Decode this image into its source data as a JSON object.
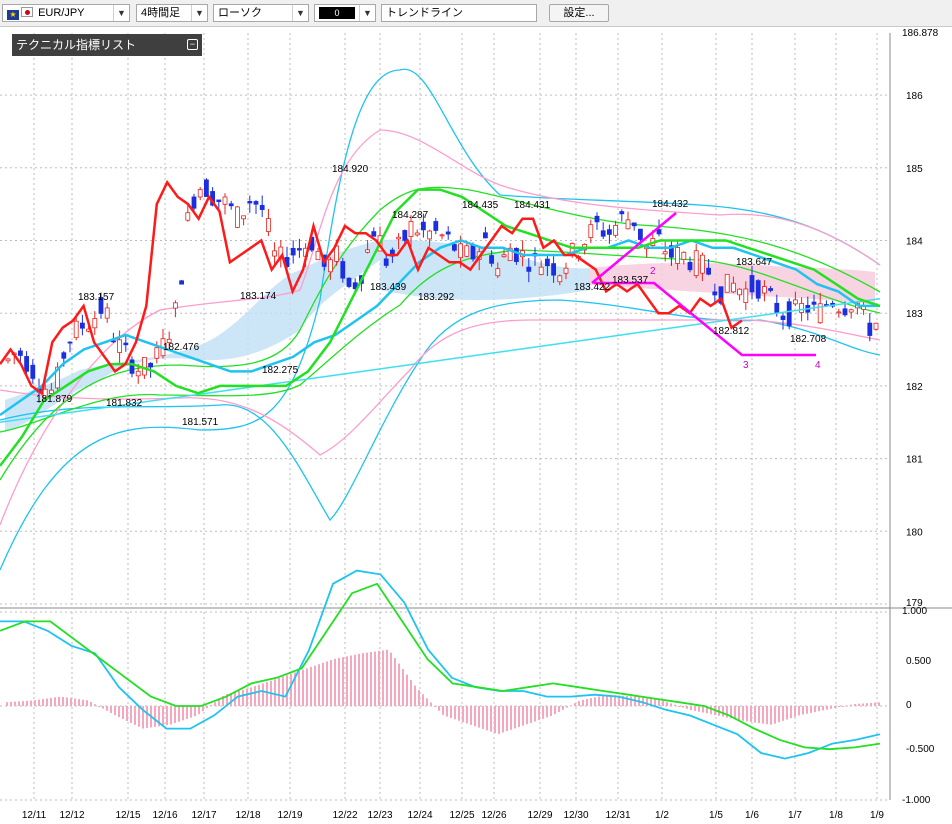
{
  "toolbar": {
    "symbol": "EUR/JPY",
    "period": "4時間足",
    "chart_type": "ローソク",
    "color_label": "0",
    "trend_tool": "トレンドライン",
    "settings": "設定..."
  },
  "indicator_list": {
    "title": "テクニカル指標リスト"
  },
  "colors": {
    "bull": "#e8221d",
    "bear": "#1a2fe0",
    "mid": "#ff1a1a",
    "line_green": "#22e022",
    "line_cyan": "#1ec3f0",
    "band_pink": "#ff9ccc"
  },
  "chart_data": [
    {
      "type": "candlestick",
      "ylim": [
        179,
        186.878
      ],
      "y_ticks": [
        "186.878",
        "186",
        "185",
        "184",
        "183",
        "182",
        "181",
        "180",
        "179"
      ],
      "x_ticks": [
        "12/11",
        "12/12",
        "12/15",
        "12/16",
        "12/17",
        "12/18",
        "12/19",
        "12/22",
        "12/23",
        "12/24",
        "12/25",
        "12/26",
        "12/29",
        "12/30",
        "12/31",
        "1/2",
        "1/5",
        "1/6",
        "1/7",
        "1/8",
        "1/9"
      ],
      "annotations": [
        {
          "text": "183.157",
          "x": "12/12",
          "y": 183.157
        },
        {
          "text": "181.879",
          "x": "12/11",
          "y": 181.879
        },
        {
          "text": "182.476",
          "x": "12/16",
          "y": 182.476
        },
        {
          "text": "181.832",
          "x": "12/15",
          "y": 181.832
        },
        {
          "text": "181.571",
          "x": "12/17",
          "y": 181.571
        },
        {
          "text": "183.174",
          "x": "12/18",
          "y": 183.174
        },
        {
          "text": "182.275",
          "x": "12/19",
          "y": 182.275
        },
        {
          "text": "184.920",
          "x": "12/22",
          "y": 184.92
        },
        {
          "text": "184.287",
          "x": "12/23",
          "y": 184.287
        },
        {
          "text": "183.439",
          "x": "12/23",
          "y": 183.439
        },
        {
          "text": "183.292",
          "x": "12/24",
          "y": 183.292
        },
        {
          "text": "184.435",
          "x": "12/25",
          "y": 184.435
        },
        {
          "text": "184.431",
          "x": "12/29",
          "y": 184.431
        },
        {
          "text": "183.537",
          "x": "12/31",
          "y": 183.537
        },
        {
          "text": "183.422",
          "x": "12/30",
          "y": 183.422
        },
        {
          "text": "184.432",
          "x": "1/2",
          "y": 184.432
        },
        {
          "text": "183.647",
          "x": "1/6",
          "y": 183.647
        },
        {
          "text": "182.812",
          "x": "1/5",
          "y": 182.812
        },
        {
          "text": "182.708",
          "x": "1/7",
          "y": 182.708
        }
      ],
      "wave_labels": [
        "2",
        "3",
        "4"
      ],
      "series": [
        {
          "name": "",
          "values": [
            182.3,
            182.5,
            182.3,
            182.0,
            181.9,
            182.6,
            182.8,
            182.9,
            183.1,
            182.6,
            182.4,
            182.2,
            182.3,
            182.6,
            183.1,
            184.5,
            184.8,
            184.6,
            184.5,
            184.3,
            184.6,
            184.4,
            183.7,
            183.8,
            183.9,
            184.0,
            183.6,
            183.8,
            183.3,
            183.6,
            184.2,
            183.7,
            183.9,
            184.2,
            184.1,
            184.1,
            184.0,
            183.8,
            183.8,
            184.0,
            183.6,
            183.9,
            183.8,
            183.7,
            183.7,
            183.6,
            183.8,
            184.0,
            184.2,
            184.1,
            184.3,
            184.3,
            183.9,
            184.0,
            183.8,
            183.8,
            183.7,
            183.6,
            183.3,
            183.4,
            183.3,
            183.4,
            183.2,
            183.0,
            183.0,
            183.1,
            183.0,
            183.2,
            183.1,
            183.2,
            182.8,
            182.9
          ]
        },
        {
          "name": "",
          "values": [
            181.6,
            181.8,
            182.0,
            182.3,
            182.5,
            182.6,
            182.7,
            182.6,
            182.5,
            182.4,
            182.3,
            182.2,
            182.2,
            182.3,
            182.4,
            182.6,
            182.7,
            182.9,
            183.1,
            183.4,
            183.7,
            183.9,
            184.0,
            183.9,
            183.9,
            183.8,
            183.8,
            183.8,
            183.9,
            183.9,
            184.0,
            183.9,
            183.9,
            184.0,
            183.9,
            183.9,
            183.8,
            183.7,
            183.6,
            183.4,
            183.3,
            183.1,
            183.1
          ]
        },
        {
          "name": "",
          "values": [
            180.9,
            181.3,
            181.8,
            182.0,
            182.2,
            182.3,
            182.3,
            182.2,
            182.0,
            181.9,
            182.0,
            182.0,
            182.0,
            182.0,
            182.2,
            182.6,
            183.2,
            183.8,
            184.4,
            184.7,
            184.7,
            184.6,
            184.4,
            184.2,
            184.1,
            184.0,
            183.9,
            183.9,
            183.9,
            183.9,
            184.0,
            184.0,
            184.0,
            184.0,
            183.9,
            183.8,
            183.7,
            183.6,
            183.4,
            183.2,
            183.1
          ]
        },
        {
          "name": "",
          "values": [
            181.5,
            181.6,
            181.7,
            181.8,
            181.9,
            182.0,
            182.1,
            182.2,
            182.3,
            182.4,
            182.5,
            182.6,
            182.7,
            182.8,
            182.9,
            183.0,
            183.1,
            183.2
          ]
        }
      ]
    },
    {
      "type": "line",
      "ylim": [
        -1.0,
        1.0
      ],
      "y_ticks": [
        "1.000",
        "0.500",
        "0",
        "-0.500",
        "-1.000"
      ],
      "series": [
        {
          "name": "",
          "values": [
            0.45,
            0.45,
            0.4,
            0.32,
            0.28,
            0.1,
            -0.02,
            -0.12,
            -0.12,
            -0.05,
            0.05,
            0.08,
            0.05,
            0.3,
            0.65,
            0.72,
            0.7,
            0.55,
            0.3,
            0.15,
            0.1,
            0.08,
            0.08,
            0.05,
            0.05,
            0.06,
            0.05,
            0.02,
            -0.02,
            -0.05,
            -0.1,
            -0.15,
            -0.25,
            -0.28,
            -0.25,
            -0.2,
            -0.18,
            -0.15
          ]
        },
        {
          "name": "",
          "values": [
            0.4,
            0.45,
            0.45,
            0.35,
            0.25,
            0.15,
            0.05,
            0.0,
            0.0,
            0.05,
            0.12,
            0.15,
            0.2,
            0.4,
            0.6,
            0.65,
            0.45,
            0.25,
            0.12,
            0.1,
            0.08,
            0.1,
            0.12,
            0.1,
            0.08,
            0.06,
            0.04,
            0.02,
            0.0,
            -0.05,
            -0.12,
            -0.18,
            -0.22,
            -0.23,
            -0.22,
            -0.2
          ]
        },
        {
          "name": "",
          "values": [
            0.02,
            0.03,
            0.05,
            0.03,
            -0.05,
            -0.12,
            -0.1,
            -0.05,
            0.06,
            0.1,
            0.15,
            0.2,
            0.25,
            0.28,
            0.3,
            0.1,
            -0.05,
            -0.1,
            -0.15,
            -0.1,
            -0.05,
            0.03,
            0.06,
            0.05,
            0.03,
            -0.02,
            -0.05,
            -0.08,
            -0.1,
            -0.05,
            -0.02,
            0.01,
            0.02
          ]
        }
      ]
    }
  ]
}
